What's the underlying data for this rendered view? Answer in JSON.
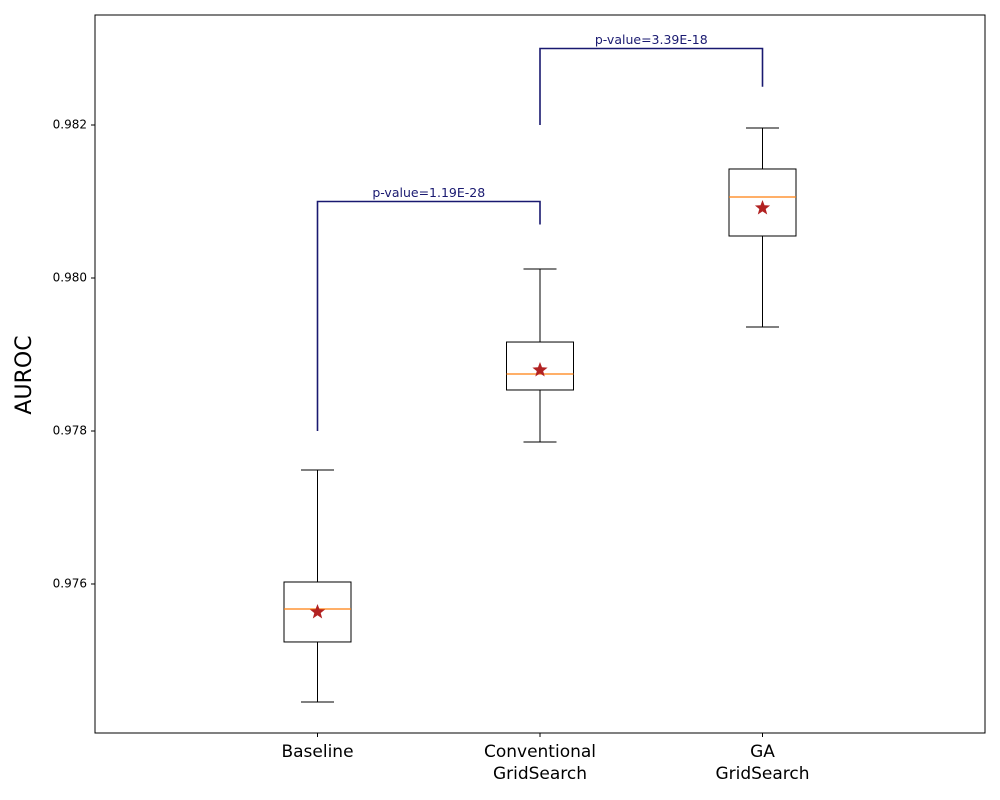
{
  "chart_data": {
    "type": "box",
    "ylabel": "AUROC",
    "categories": [
      "Baseline",
      "Conventional\nGridSearch",
      "GA\nGridSearch"
    ],
    "boxes": [
      {
        "whislo": 0.974458,
        "q1": 0.975242,
        "med": 0.975673,
        "q3": 0.976026,
        "whishi": 0.97749,
        "mean": 0.975634
      },
      {
        "whislo": 0.977856,
        "q1": 0.978536,
        "med": 0.978745,
        "q3": 0.979163,
        "whishi": 0.980118,
        "mean": 0.978797
      },
      {
        "whislo": 0.979359,
        "q1": 0.980549,
        "med": 0.981059,
        "q3": 0.981425,
        "whishi": 0.981961,
        "mean": 0.980915
      }
    ],
    "box_color": "#000000",
    "median_color": "#ff7f0e",
    "mean_color": "#b22222",
    "annotations": [
      {
        "text": "p-value=1.19E-28",
        "y_left": 0.978,
        "y_top": 0.981,
        "y_right": 0.9807
      },
      {
        "text": "p-value=3.39E-18",
        "y_left": 0.982,
        "y_top": 0.983,
        "y_right": 0.9825
      }
    ],
    "annotation_color": "#191970",
    "xlim": [
      0,
      4
    ],
    "ylim": [
      0.974052,
      0.983438
    ],
    "yticks": [
      0.976,
      0.978,
      {
        "value": 0.98,
        "label": "0.980"
      },
      0.982
    ]
  }
}
